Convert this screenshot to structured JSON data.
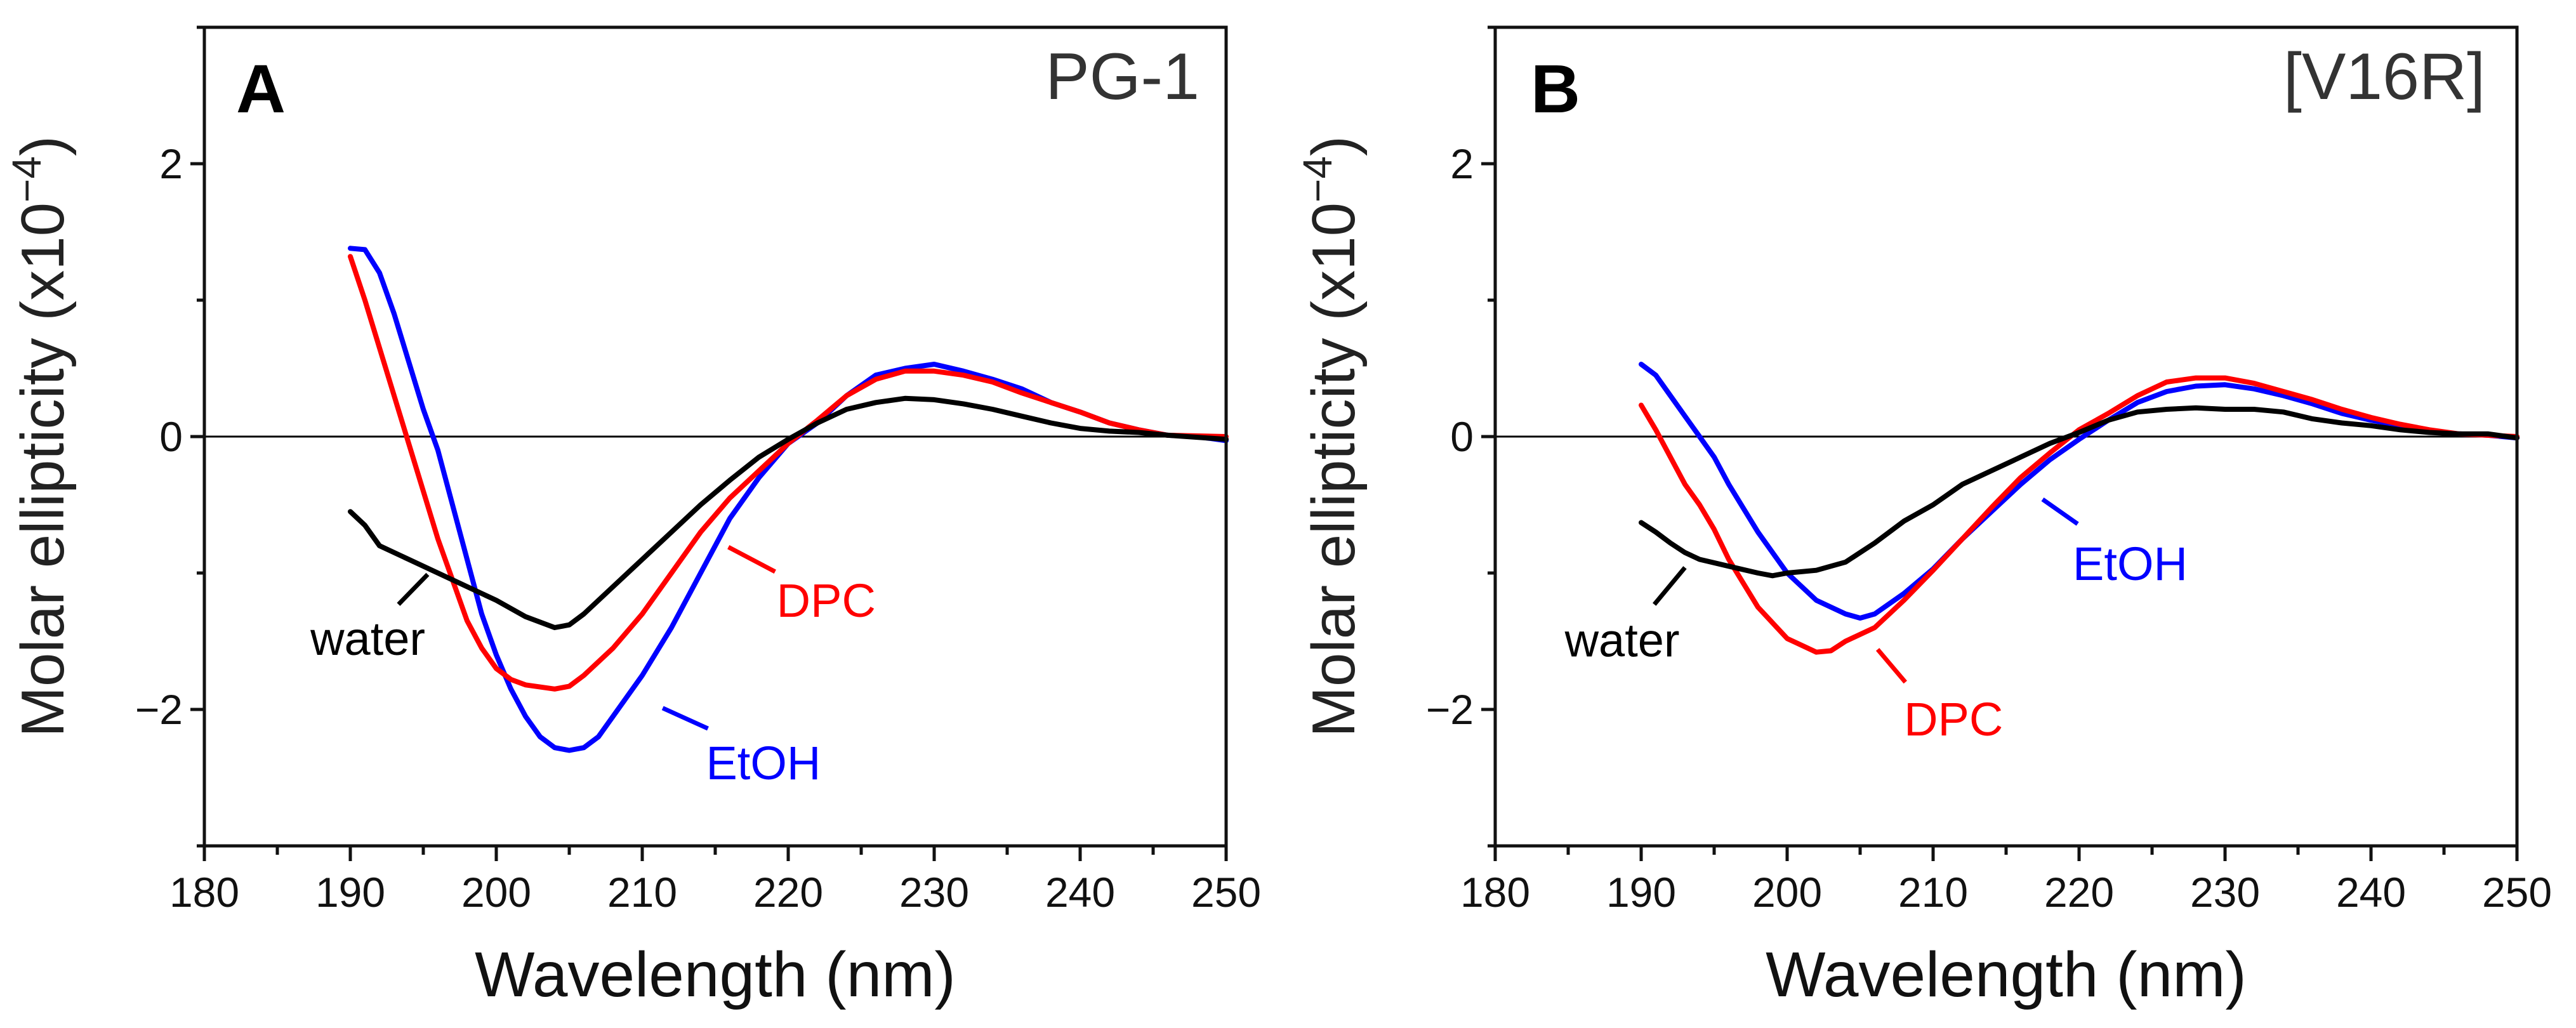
{
  "chart_data": [
    {
      "type": "line",
      "panel_label": "A",
      "title": "PG-1",
      "xlabel": "Wavelength (nm)",
      "ylabel": "Molar ellipticity (x10",
      "ylabel_exponent": "−4",
      "ylabel_close": ")",
      "xlim": [
        180,
        250
      ],
      "ylim": [
        -3,
        3
      ],
      "xticks": [
        "180",
        "190",
        "200",
        "210",
        "220",
        "230",
        "240",
        "250"
      ],
      "yticks": [
        "2",
        "0",
        "−2"
      ],
      "ytick_values": [
        2,
        0,
        -2
      ],
      "grid": false,
      "zero_line": true,
      "series": [
        {
          "name": "EtOH",
          "color": "#0000ff",
          "x": [
            190,
            191,
            192,
            193,
            194,
            195,
            196,
            197,
            198,
            199,
            200,
            201,
            202,
            203,
            204,
            205,
            206,
            207,
            208,
            210,
            212,
            214,
            216,
            218,
            220,
            222,
            224,
            226,
            228,
            230,
            232,
            234,
            236,
            238,
            240,
            242,
            244,
            246,
            248,
            250
          ],
          "y": [
            1.38,
            1.37,
            1.2,
            0.9,
            0.55,
            0.2,
            -0.1,
            -0.5,
            -0.9,
            -1.3,
            -1.6,
            -1.85,
            -2.05,
            -2.2,
            -2.28,
            -2.3,
            -2.28,
            -2.2,
            -2.05,
            -1.75,
            -1.4,
            -1.0,
            -0.6,
            -0.3,
            -0.05,
            0.1,
            0.3,
            0.45,
            0.5,
            0.53,
            0.48,
            0.42,
            0.35,
            0.25,
            0.18,
            0.1,
            0.05,
            0.01,
            0,
            -0.03
          ]
        },
        {
          "name": "DPC",
          "color": "#ff0000",
          "x": [
            190,
            191,
            192,
            193,
            194,
            195,
            196,
            197,
            198,
            199,
            200,
            201,
            202,
            204,
            205,
            206,
            208,
            210,
            212,
            214,
            216,
            218,
            220,
            222,
            224,
            226,
            228,
            230,
            232,
            234,
            236,
            238,
            240,
            242,
            244,
            246,
            250
          ],
          "y": [
            1.32,
            1.0,
            0.65,
            0.3,
            -0.05,
            -0.4,
            -0.75,
            -1.05,
            -1.35,
            -1.55,
            -1.7,
            -1.78,
            -1.82,
            -1.85,
            -1.83,
            -1.75,
            -1.55,
            -1.3,
            -1.0,
            -0.7,
            -0.45,
            -0.25,
            -0.05,
            0.12,
            0.3,
            0.42,
            0.48,
            0.48,
            0.45,
            0.4,
            0.32,
            0.25,
            0.18,
            0.1,
            0.05,
            0.01,
            0
          ]
        },
        {
          "name": "water",
          "color": "#000000",
          "x": [
            190,
            191,
            192,
            194,
            196,
            198,
            200,
            202,
            204,
            205,
            206,
            208,
            210,
            212,
            214,
            216,
            218,
            220,
            222,
            224,
            226,
            228,
            230,
            232,
            234,
            236,
            238,
            240,
            242,
            244,
            246,
            250
          ],
          "y": [
            -0.55,
            -0.65,
            -0.8,
            -0.9,
            -1.0,
            -1.1,
            -1.2,
            -1.32,
            -1.4,
            -1.38,
            -1.3,
            -1.1,
            -0.9,
            -0.7,
            -0.5,
            -0.32,
            -0.15,
            -0.02,
            0.1,
            0.2,
            0.25,
            0.28,
            0.27,
            0.24,
            0.2,
            0.15,
            0.1,
            0.06,
            0.04,
            0.03,
            0.01,
            -0.02
          ]
        }
      ]
    },
    {
      "type": "line",
      "panel_label": "B",
      "title": "[V16R]",
      "xlabel": "Wavelength (nm)",
      "ylabel": "Molar ellipticity (x10",
      "ylabel_exponent": "−4",
      "ylabel_close": ")",
      "xlim": [
        180,
        250
      ],
      "ylim": [
        -3,
        3
      ],
      "xticks": [
        "180",
        "190",
        "200",
        "210",
        "220",
        "230",
        "240",
        "250"
      ],
      "yticks": [
        "2",
        "0",
        "−2"
      ],
      "ytick_values": [
        2,
        0,
        -2
      ],
      "grid": false,
      "zero_line": true,
      "series": [
        {
          "name": "EtOH",
          "color": "#0000ff",
          "x": [
            190,
            191,
            192,
            193,
            194,
            195,
            196,
            198,
            200,
            202,
            204,
            205,
            206,
            208,
            210,
            212,
            214,
            216,
            218,
            220,
            222,
            224,
            226,
            228,
            230,
            232,
            234,
            236,
            238,
            240,
            242,
            244,
            246,
            248,
            250
          ],
          "y": [
            0.53,
            0.45,
            0.3,
            0.15,
            0.0,
            -0.15,
            -0.35,
            -0.7,
            -1.0,
            -1.2,
            -1.3,
            -1.33,
            -1.3,
            -1.15,
            -0.97,
            -0.75,
            -0.55,
            -0.35,
            -0.17,
            -0.02,
            0.12,
            0.25,
            0.33,
            0.37,
            0.38,
            0.35,
            0.3,
            0.24,
            0.17,
            0.12,
            0.08,
            0.04,
            0.02,
            0.01,
            -0.01
          ]
        },
        {
          "name": "DPC",
          "color": "#ff0000",
          "x": [
            190,
            191,
            192,
            193,
            194,
            195,
            196,
            198,
            200,
            202,
            203,
            204,
            206,
            208,
            210,
            212,
            214,
            216,
            218,
            220,
            222,
            224,
            226,
            228,
            230,
            232,
            234,
            236,
            238,
            240,
            242,
            244,
            246,
            250
          ],
          "y": [
            0.23,
            0.05,
            -0.15,
            -0.35,
            -0.5,
            -0.68,
            -0.9,
            -1.25,
            -1.48,
            -1.58,
            -1.57,
            -1.5,
            -1.4,
            -1.2,
            -0.98,
            -0.75,
            -0.52,
            -0.3,
            -0.12,
            0.05,
            0.17,
            0.3,
            0.4,
            0.43,
            0.43,
            0.39,
            0.33,
            0.27,
            0.2,
            0.14,
            0.09,
            0.05,
            0.02,
            0
          ]
        },
        {
          "name": "water",
          "color": "#000000",
          "x": [
            190,
            191,
            192,
            193,
            194,
            196,
            198,
            199,
            200,
            202,
            204,
            206,
            208,
            210,
            212,
            214,
            216,
            218,
            220,
            222,
            224,
            226,
            228,
            230,
            232,
            234,
            236,
            238,
            240,
            242,
            244,
            246,
            248,
            250
          ],
          "y": [
            -0.63,
            -0.7,
            -0.78,
            -0.85,
            -0.9,
            -0.95,
            -1.0,
            -1.02,
            -1.0,
            -0.98,
            -0.92,
            -0.78,
            -0.62,
            -0.5,
            -0.35,
            -0.25,
            -0.15,
            -0.05,
            0.03,
            0.12,
            0.18,
            0.2,
            0.21,
            0.2,
            0.2,
            0.18,
            0.13,
            0.1,
            0.08,
            0.05,
            0.03,
            0.02,
            0.02,
            -0.01
          ]
        }
      ]
    }
  ]
}
